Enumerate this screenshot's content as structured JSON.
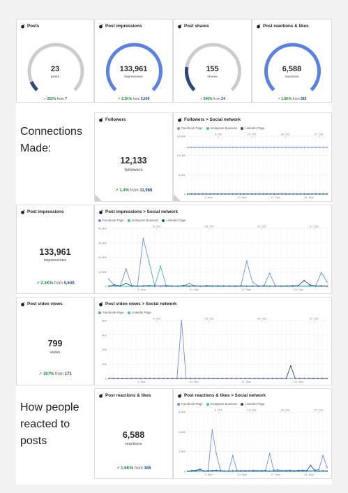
{
  "colors": {
    "fb": "#6b8fe0",
    "ig": "#3cbcc0",
    "li": "#2f4879",
    "gauge_bg": "#cccccc",
    "gauge_fg": "#5b82e0",
    "trend": "#1a8a3a"
  },
  "kpis": [
    {
      "title": "Posts",
      "value": "23",
      "unit": "posts",
      "pct": "225%",
      "from": "7",
      "fill": 0.08
    },
    {
      "title": "Post impressions",
      "value": "133,961",
      "unit": "impressions",
      "pct": "2.3K%",
      "from": "5,649",
      "fill": 1.0
    },
    {
      "title": "Post shares",
      "value": "155",
      "unit": "shares",
      "pct": "546%",
      "from": "24",
      "fill": 0.2
    },
    {
      "title": "Post reactions & likes",
      "value": "6,588",
      "unit": "reactions",
      "pct": "1.6K%",
      "from": "385",
      "fill": 1.0
    }
  ],
  "sections": {
    "connections": "Connections Made:",
    "reacted": "How people reacted to posts"
  },
  "followers": {
    "title": "Followers",
    "value": "12,133",
    "unit": "followers",
    "pct": "1.4%",
    "from": "11,968"
  },
  "impressions": {
    "title": "Post impressions",
    "value": "133,961",
    "unit": "impressions",
    "pct": "2.3K%",
    "from": "5,649"
  },
  "video": {
    "title": "Post video views",
    "value": "799",
    "unit": "views",
    "pct": "367%",
    "from": "171"
  },
  "reactions": {
    "title": "Post reactions & likes",
    "value": "6,588",
    "unit": "reactions",
    "pct": "1.6K%",
    "from": "385"
  },
  "from_word": "from",
  "chart_data": [
    {
      "id": "followers",
      "type": "line",
      "title": "Followers > Social network",
      "legend": [
        "Facebook Page",
        "Instagram Business",
        "LinkedIn Page"
      ],
      "top_ticks": [
        "6. Oct",
        "13. Oct",
        "20. Oct",
        "27. Oct"
      ],
      "bottom_ticks": [
        "3. Nov",
        "10. Nov",
        "17. Nov",
        "24. Nov"
      ],
      "ylim": [
        0,
        15000
      ],
      "yticks": [
        "0",
        "5,000",
        "10,000",
        "15,000"
      ],
      "series": [
        {
          "name": "Facebook Page",
          "values": [
            12100,
            12100,
            12100,
            12100,
            12100,
            12100,
            12100,
            12100,
            12100,
            12100,
            12100,
            12100,
            12100,
            12100,
            12100,
            12100,
            12100,
            12100,
            12100,
            12100,
            12100,
            12100,
            12100,
            12100,
            12100,
            12100,
            12100,
            12100,
            12100,
            12100,
            12100,
            12100,
            12100,
            12100,
            12100,
            12100,
            12100,
            12100
          ]
        },
        {
          "name": "Instagram Business",
          "values": [
            10,
            10,
            10,
            10,
            10,
            10,
            10,
            10,
            10,
            10,
            10,
            10,
            10,
            10,
            10,
            10,
            10,
            10,
            10,
            10,
            10,
            10,
            10,
            10,
            10,
            10,
            10,
            10,
            10,
            10,
            10,
            10,
            10,
            10,
            10,
            10,
            10,
            10
          ]
        },
        {
          "name": "LinkedIn Page",
          "values": [
            40,
            40,
            40,
            40,
            40,
            40,
            40,
            40,
            40,
            40,
            40,
            40,
            40,
            40,
            40,
            40,
            40,
            40,
            40,
            40,
            40,
            40,
            40,
            40,
            40,
            40,
            40,
            40,
            40,
            40,
            40,
            40,
            40,
            40,
            40,
            40,
            40,
            40
          ]
        }
      ]
    },
    {
      "id": "impressions",
      "type": "line",
      "title": "Post impressions > Social network",
      "legend": [
        "Facebook Page",
        "Instagram Business",
        "LinkedIn Page"
      ],
      "top_ticks": [
        "6. Oct",
        "13. Oct",
        "20. Oct",
        "27. Oct"
      ],
      "bottom_ticks": [
        "3. Nov",
        "10. Nov",
        "17. Nov",
        "24. Nov"
      ],
      "ylim": [
        0,
        40000
      ],
      "yticks": [
        "0",
        "10,000",
        "20,000",
        "30,000",
        "40,000"
      ],
      "series": [
        {
          "name": "Facebook Page",
          "values": [
            5000,
            200,
            300,
            12000,
            500,
            200,
            33000,
            17000,
            300,
            200,
            600,
            200,
            100,
            300,
            2000,
            200,
            100,
            500,
            300,
            100,
            300,
            100,
            300,
            200,
            17500,
            3000,
            300,
            200,
            9000,
            300,
            200,
            100,
            500,
            300,
            200,
            400,
            200,
            9500,
            3000
          ]
        },
        {
          "name": "Instagram Business",
          "values": [
            0,
            0,
            0,
            0,
            0,
            0,
            0,
            0,
            0,
            14000,
            0,
            0,
            0,
            0,
            0,
            0,
            0,
            0,
            0,
            0,
            0,
            0,
            0,
            0,
            0,
            0,
            0,
            0,
            0,
            0,
            0,
            0,
            0,
            0,
            0,
            0,
            0,
            0,
            0
          ]
        },
        {
          "name": "LinkedIn Page",
          "values": [
            100,
            1000,
            300,
            2000,
            200,
            100,
            300,
            500,
            200,
            100,
            100,
            200,
            100,
            600,
            100,
            300,
            100,
            200,
            100,
            300,
            100,
            200,
            100,
            300,
            100,
            200,
            100,
            400,
            100,
            200,
            100,
            300,
            100,
            500,
            4000,
            1000,
            200,
            300,
            100
          ]
        }
      ]
    },
    {
      "id": "video",
      "type": "line",
      "title": "Post video views > Social network",
      "legend": [
        "Facebook Page",
        "LinkedIn Page"
      ],
      "top_ticks": [
        "6. Oct",
        "13. Oct",
        "20. Oct",
        "27. Oct"
      ],
      "bottom_ticks": [
        "3. Nov",
        "10. Nov",
        "17. Nov",
        "24. Nov"
      ],
      "ylim": [
        0,
        800
      ],
      "yticks": [
        "0",
        "200",
        "400",
        "600",
        "800"
      ],
      "series": [
        {
          "name": "Facebook Page",
          "values": [
            0,
            0,
            0,
            0,
            0,
            0,
            0,
            0,
            0,
            0,
            0,
            0,
            0,
            0,
            0,
            0,
            800,
            0,
            0,
            0,
            0,
            0,
            0,
            0,
            0,
            0,
            0,
            0,
            0,
            0,
            0,
            0,
            0,
            0,
            0,
            0,
            0,
            0,
            0,
            0,
            0,
            0,
            0,
            0,
            0,
            0,
            0,
            0,
            0
          ]
        },
        {
          "name": "LinkedIn Page",
          "values": [
            0,
            0,
            0,
            0,
            0,
            0,
            0,
            0,
            0,
            0,
            0,
            0,
            0,
            0,
            0,
            0,
            0,
            0,
            0,
            0,
            0,
            0,
            0,
            0,
            0,
            0,
            0,
            0,
            0,
            0,
            0,
            0,
            0,
            0,
            0,
            0,
            0,
            0,
            0,
            0,
            175,
            0,
            0,
            0,
            0,
            0,
            0,
            0,
            0
          ]
        }
      ]
    },
    {
      "id": "reactions",
      "type": "line",
      "title": "Post reactions & likes > Social network",
      "legend": [
        "Facebook Page",
        "Instagram Business",
        "LinkedIn Page"
      ],
      "top_ticks": [
        "6. Oct",
        "13. Oct",
        "20. Oct",
        "27. Oct"
      ],
      "bottom_ticks": [
        "3. Nov",
        "10. Nov",
        "17. Nov",
        "24. Nov"
      ],
      "ylim": [
        0,
        3000
      ],
      "yticks": [
        "0",
        "1,000",
        "2,000",
        "3,000"
      ],
      "series": [
        {
          "name": "Facebook Page",
          "values": [
            0,
            50,
            50,
            120,
            10,
            50,
            2100,
            900,
            50,
            10,
            20,
            800,
            50,
            20,
            40,
            20,
            50,
            30,
            40,
            50,
            900,
            60,
            80,
            30,
            40,
            50,
            30,
            50,
            60,
            40,
            30,
            60,
            100,
            800,
            200
          ]
        },
        {
          "name": "Instagram Business",
          "values": [
            0,
            0,
            0,
            0,
            0,
            0,
            0,
            0,
            0,
            0,
            0,
            0,
            0,
            0,
            0,
            0,
            0,
            0,
            0,
            0,
            0,
            0,
            0,
            0,
            0,
            0,
            0,
            0,
            0,
            0,
            0,
            0,
            0,
            0,
            0
          ]
        },
        {
          "name": "LinkedIn Page",
          "values": [
            0,
            20,
            30,
            80,
            20,
            20,
            40,
            50,
            30,
            20,
            20,
            30,
            20,
            30,
            20,
            30,
            20,
            30,
            20,
            30,
            20,
            30,
            20,
            30,
            20,
            30,
            20,
            30,
            20,
            30,
            300,
            40,
            20,
            30,
            20
          ]
        }
      ]
    }
  ]
}
